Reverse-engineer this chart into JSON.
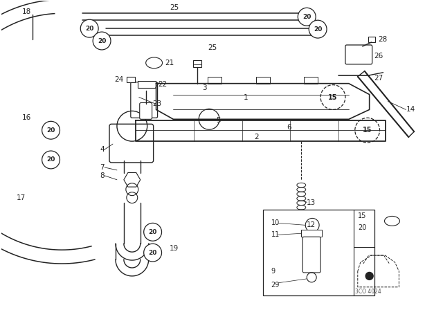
{
  "bg_color": "#ffffff",
  "line_color": "#222222",
  "fig_width": 6.4,
  "fig_height": 4.48,
  "dpi": 100
}
